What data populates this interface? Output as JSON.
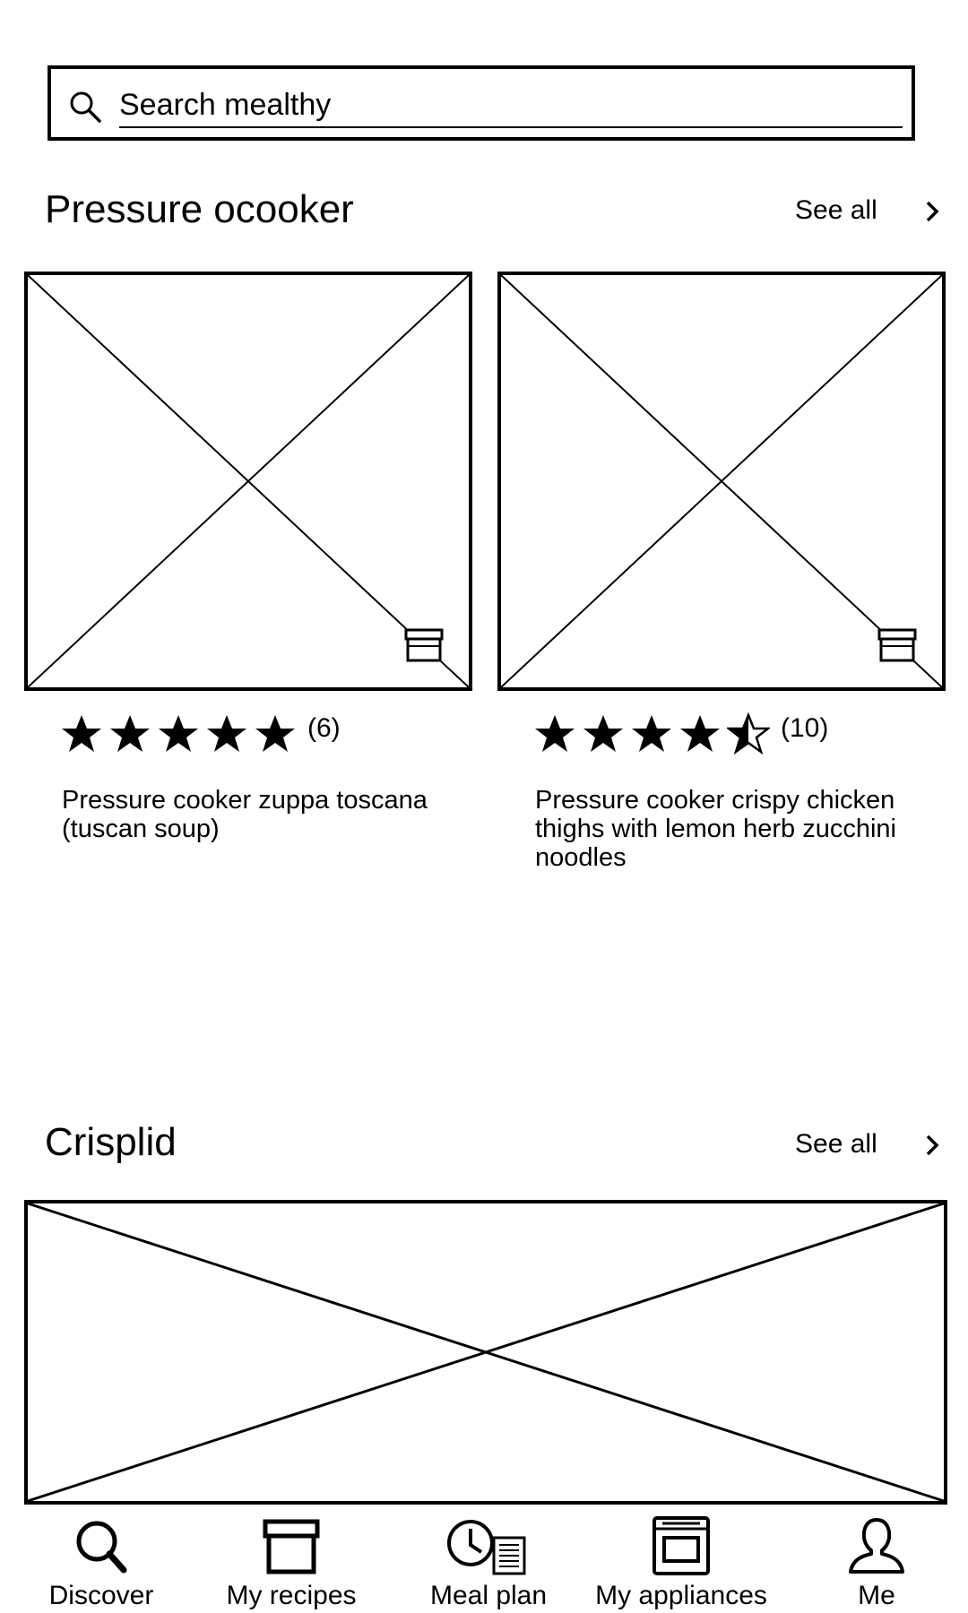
{
  "search": {
    "placeholder": "Search mealthy"
  },
  "sections": [
    {
      "title": "Pressure ocooker",
      "see_all_label": "See all",
      "cards": [
        {
          "rating": 5,
          "rating_count_label": "(6)",
          "title": "Pressure cooker zuppa toscana (tuscan soup)"
        },
        {
          "rating": 4.5,
          "rating_count_label": "(10)",
          "title": "Pressure cooker crispy chicken thighs with lemon herb zucchini noodles"
        }
      ]
    },
    {
      "title": "Crisplid",
      "see_all_label": "See all"
    }
  ],
  "nav": {
    "items": [
      {
        "label": "Discover",
        "icon": "search-icon"
      },
      {
        "label": "My recipes",
        "icon": "recipe-box-icon"
      },
      {
        "label": "Meal plan",
        "icon": "clock-list-icon"
      },
      {
        "label": "My appliances",
        "icon": "oven-icon"
      },
      {
        "label": "Me",
        "icon": "user-icon"
      }
    ]
  }
}
